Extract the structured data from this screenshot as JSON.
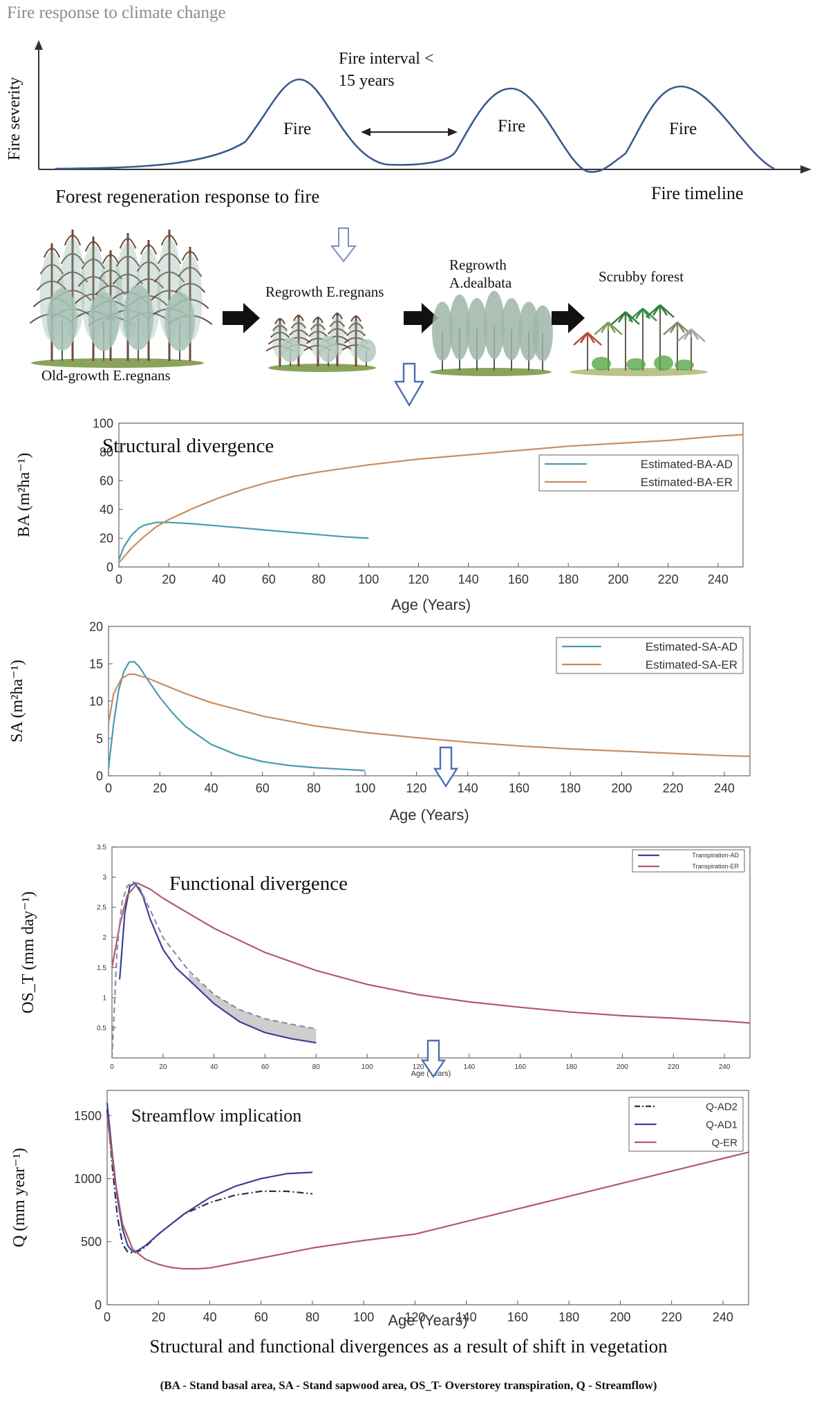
{
  "fire_panel": {
    "title": "Fire response to climate change",
    "ylabel": "Fire severity",
    "interval_label_1": "Fire interval <",
    "interval_label_2": "15 years",
    "fire_labels": [
      "Fire",
      "Fire",
      "Fire"
    ],
    "regen_label": "Forest regeneration response to fire",
    "timeline_label": "Fire timeline",
    "curve_color": "#3a5a8c"
  },
  "stages": [
    {
      "label": "Old-growth E.regnans",
      "icon": "old-growth-forest-illustration"
    },
    {
      "label": "Regrowth E.regnans",
      "icon": "regrowth-eucalypt-illustration"
    },
    {
      "label": "Regrowth A.dealbata",
      "label_line1": "Regrowth",
      "label_line2": "A.dealbata",
      "icon": "regrowth-acacia-illustration"
    },
    {
      "label": "Scrubby forest",
      "icon": "scrubby-forest-illustration"
    }
  ],
  "chart_data": [
    {
      "id": "ba",
      "type": "line",
      "title": "Structural divergence",
      "xlabel": "Age (Years)",
      "ylabel": "BA (m²ha⁻¹)",
      "xlim": [
        0,
        250
      ],
      "ylim": [
        0,
        100
      ],
      "xticks": [
        0,
        20,
        40,
        60,
        80,
        100,
        120,
        140,
        160,
        180,
        200,
        220,
        240
      ],
      "yticks": [
        0,
        20,
        40,
        60,
        80,
        100
      ],
      "legend_position": "top-right",
      "series": [
        {
          "name": "Estimated-BA-AD",
          "color": "#4a9ab0",
          "x": [
            0,
            2,
            5,
            8,
            10,
            15,
            20,
            30,
            40,
            50,
            60,
            70,
            80,
            90,
            100
          ],
          "y": [
            5,
            14,
            22,
            27,
            29,
            31,
            31,
            30,
            28.5,
            27,
            25.5,
            24,
            22.5,
            21,
            20
          ]
        },
        {
          "name": "Estimated-BA-ER",
          "color": "#c98c5e",
          "x": [
            0,
            5,
            10,
            15,
            20,
            30,
            40,
            50,
            60,
            70,
            80,
            100,
            120,
            140,
            160,
            180,
            200,
            220,
            240,
            250
          ],
          "y": [
            3,
            13,
            21,
            28,
            33,
            41,
            48,
            54,
            59,
            63,
            66,
            71,
            75,
            78,
            81,
            84,
            86,
            88,
            91,
            92
          ]
        }
      ]
    },
    {
      "id": "sa",
      "type": "line",
      "title": "",
      "xlabel": "Age (Years)",
      "ylabel": "SA (m²ha⁻¹)",
      "xlim": [
        0,
        250
      ],
      "ylim": [
        0,
        20
      ],
      "xticks": [
        0,
        20,
        40,
        60,
        80,
        100,
        120,
        140,
        160,
        180,
        200,
        220,
        240
      ],
      "yticks": [
        0,
        5,
        10,
        15,
        20
      ],
      "legend_position": "top-right",
      "series": [
        {
          "name": "Estimated-SA-AD",
          "color": "#4a9ab0",
          "x": [
            0,
            2,
            4,
            6,
            8,
            10,
            12,
            15,
            20,
            25,
            30,
            40,
            50,
            60,
            70,
            80,
            90,
            100
          ],
          "y": [
            1,
            7,
            11.5,
            14,
            15.2,
            15.3,
            14.6,
            13,
            10.5,
            8.4,
            6.6,
            4.2,
            2.8,
            1.9,
            1.4,
            1.1,
            0.9,
            0.7
          ]
        },
        {
          "name": "Estimated-SA-ER",
          "color": "#c98c5e",
          "x": [
            0,
            2,
            5,
            8,
            10,
            15,
            20,
            30,
            40,
            60,
            80,
            100,
            120,
            140,
            160,
            180,
            200,
            220,
            240,
            250
          ],
          "y": [
            7,
            11,
            13,
            13.6,
            13.6,
            13.1,
            12.4,
            11,
            9.8,
            8,
            6.7,
            5.8,
            5.1,
            4.5,
            4,
            3.6,
            3.3,
            3,
            2.7,
            2.6
          ]
        }
      ]
    },
    {
      "id": "ost",
      "type": "line",
      "title": "Functional divergence",
      "xlabel": "Age (Years)",
      "ylabel": "OS_T (mm day⁻¹)",
      "xlim": [
        0,
        250
      ],
      "ylim": [
        0,
        3.5
      ],
      "xticks": [
        0,
        20,
        40,
        60,
        80,
        100,
        120,
        140,
        160,
        180,
        200,
        220,
        240
      ],
      "yticks": [
        0.5,
        1,
        1.5,
        2,
        2.5,
        3,
        3.5
      ],
      "legend_position": "top-right",
      "series": [
        {
          "name": "Transpiration-AD",
          "color": "#3b3f9a",
          "x": [
            3,
            5,
            7,
            9,
            12,
            15,
            20,
            25,
            30,
            40,
            50,
            60,
            70,
            80
          ],
          "y": [
            1.3,
            2.4,
            2.85,
            2.9,
            2.7,
            2.3,
            1.8,
            1.5,
            1.3,
            0.9,
            0.6,
            0.42,
            0.32,
            0.25
          ]
        },
        {
          "name": "Transpiration-ER",
          "color": "#b05a6a",
          "x": [
            0,
            3,
            6,
            10,
            15,
            20,
            30,
            40,
            60,
            80,
            100,
            120,
            140,
            160,
            180,
            200,
            220,
            240,
            250
          ],
          "y": [
            1.5,
            2.2,
            2.7,
            2.9,
            2.8,
            2.65,
            2.4,
            2.15,
            1.75,
            1.45,
            1.22,
            1.05,
            0.93,
            0.84,
            0.76,
            0.7,
            0.66,
            0.61,
            0.58
          ]
        },
        {
          "name": "",
          "color": "#8a8fa0",
          "dashed": true,
          "x": [
            0,
            2,
            4,
            6,
            8,
            10,
            15,
            20,
            30,
            40,
            50,
            60,
            70,
            80
          ],
          "y": [
            0,
            1.8,
            2.6,
            2.85,
            2.92,
            2.9,
            2.45,
            2,
            1.45,
            1.05,
            0.8,
            0.65,
            0.56,
            0.48
          ]
        }
      ],
      "shaded_band": {
        "x": [
          30,
          40,
          50,
          60,
          70,
          80
        ],
        "lower": [
          1.3,
          0.9,
          0.6,
          0.42,
          0.32,
          0.25
        ],
        "upper": [
          1.42,
          1.05,
          0.8,
          0.65,
          0.56,
          0.48
        ],
        "color": "#c9c9c9"
      }
    },
    {
      "id": "q",
      "type": "line",
      "title": "Streamflow implication",
      "xlabel": "Age (Years)",
      "ylabel": "Q (mm year⁻¹)",
      "xlim": [
        0,
        250
      ],
      "ylim": [
        0,
        1700
      ],
      "xticks": [
        0,
        20,
        40,
        60,
        80,
        100,
        120,
        140,
        160,
        180,
        200,
        220,
        240
      ],
      "yticks": [
        0,
        500,
        1000,
        1500
      ],
      "legend_position": "top-right",
      "series": [
        {
          "name": "Q-AD2",
          "color": "#2b2e50",
          "dashdot": true,
          "x": [
            0,
            2,
            4,
            6,
            8,
            10,
            12,
            15,
            20,
            30,
            40,
            50,
            60,
            70,
            80
          ],
          "y": [
            1550,
            1100,
            700,
            480,
            420,
            410,
            420,
            460,
            560,
            720,
            810,
            870,
            900,
            900,
            880
          ]
        },
        {
          "name": "Q-AD1",
          "color": "#3b3f9a",
          "x": [
            0,
            2,
            4,
            6,
            8,
            10,
            12,
            15,
            20,
            30,
            40,
            50,
            60,
            70,
            80
          ],
          "y": [
            1600,
            1200,
            850,
            600,
            470,
            420,
            430,
            470,
            560,
            720,
            850,
            940,
            1000,
            1040,
            1050
          ]
        },
        {
          "name": "Q-ER",
          "color": "#b05a6a",
          "x": [
            0,
            3,
            6,
            10,
            15,
            20,
            25,
            30,
            35,
            40,
            60,
            80,
            100,
            120,
            140,
            160,
            180,
            200,
            220,
            240,
            250
          ],
          "y": [
            1500,
            1000,
            640,
            440,
            360,
            320,
            295,
            285,
            285,
            292,
            370,
            450,
            510,
            560,
            660,
            760,
            860,
            960,
            1060,
            1160,
            1210
          ]
        }
      ]
    }
  ],
  "arrows": {
    "down_color": "#4a6fb5"
  },
  "caption": "Structural and functional divergences as a result of shift in vegetation",
  "footnote": "(BA - Stand basal area, SA - Stand sapwood area, OS_T- Overstorey transpiration, Q - Streamflow)"
}
